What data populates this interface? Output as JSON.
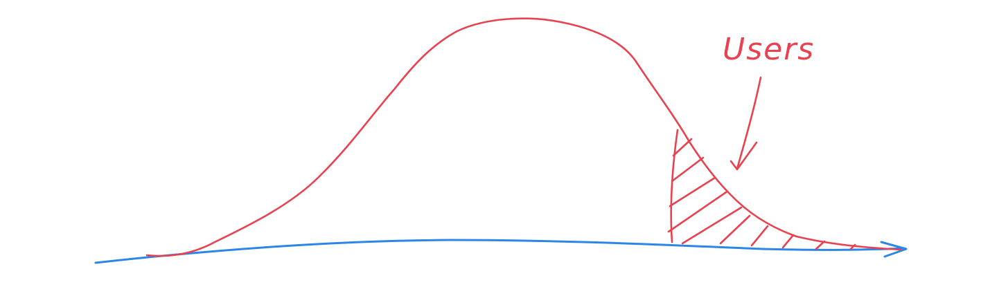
{
  "annotation": {
    "label": "Users"
  },
  "colors": {
    "curve": "#e8414f",
    "axis": "#2b86e6",
    "background": "#ffffff"
  },
  "icons": {
    "pointer": "arrow-down-left-icon",
    "axis_head": "arrowhead-right-icon"
  }
}
